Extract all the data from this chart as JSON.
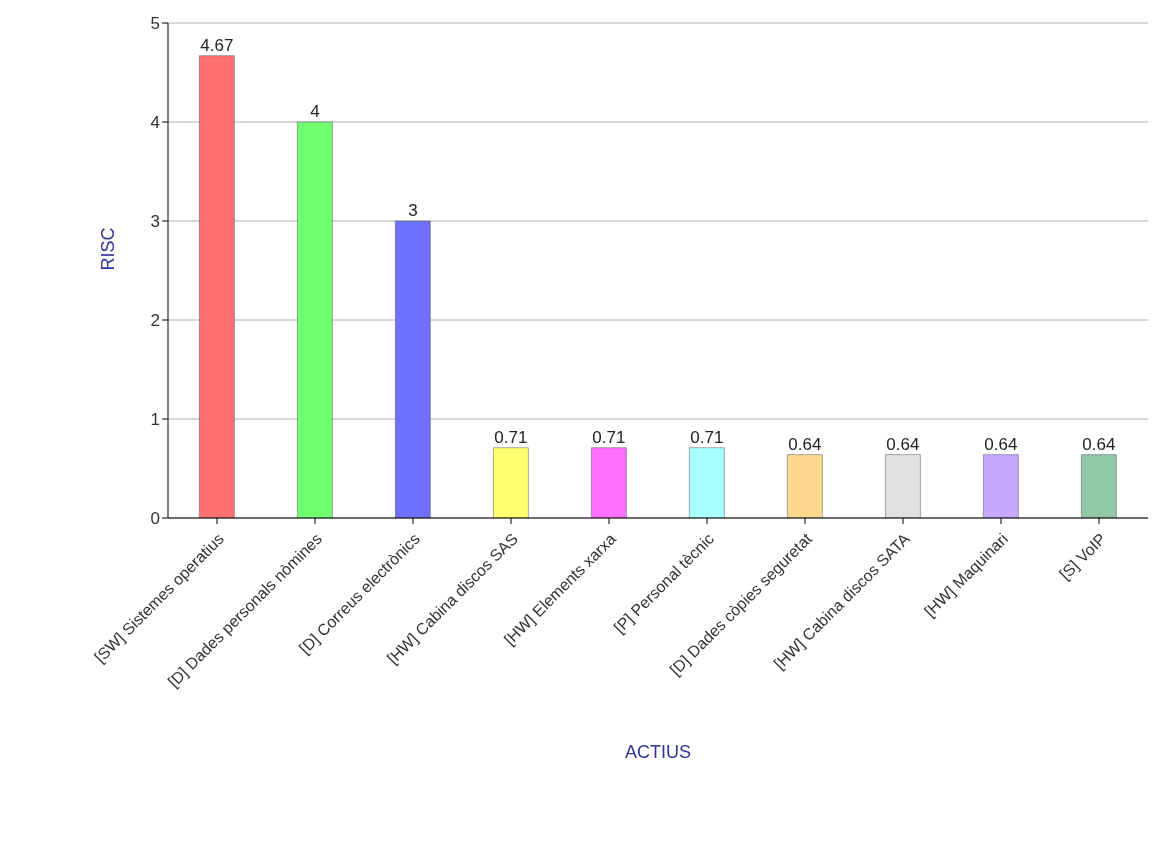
{
  "chart_data": {
    "type": "bar",
    "xlabel": "ACTIUS",
    "ylabel": "RISC",
    "categories": [
      "[SW] Sistemes operatius",
      "[D] Dades personals nòmines",
      "[D] Correus electrònics",
      "[HW] Cabina discos SAS",
      "[HW] Elements xarxa",
      "[P] Personal tècnic",
      "[D] Dades còpies seguretat",
      "[HW] Cabina discos SATA",
      "[HW] Maquinari",
      "[S] VoIP"
    ],
    "values": [
      4.67,
      4,
      3,
      0.71,
      0.71,
      0.71,
      0.64,
      0.64,
      0.64,
      0.64
    ],
    "colors": [
      "#ff7070",
      "#70ff70",
      "#7070ff",
      "#ffff70",
      "#ff70ff",
      "#a8ffff",
      "#ffd890",
      "#e0e0e0",
      "#c8a8ff",
      "#90c8a8"
    ],
    "ylim": [
      0,
      5
    ],
    "yticks": [
      0,
      1,
      2,
      3,
      4,
      5
    ],
    "grid": "y",
    "data_labels": true
  }
}
